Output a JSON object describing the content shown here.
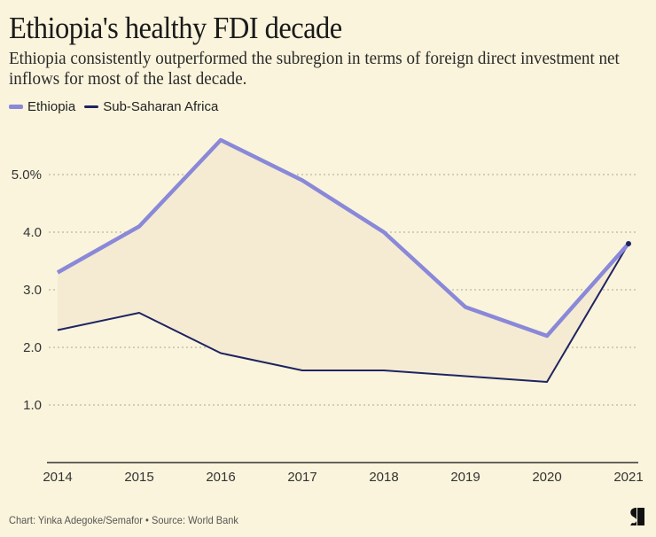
{
  "header": {
    "title": "Ethiopia's healthy FDI decade",
    "subtitle": "Ethiopia consistently outperformed the subregion in terms of foreign direct investment net inflows for most of the last decade."
  },
  "footer": {
    "credit": "Chart: Yinka Adegoke/Semafor • Source: World Bank",
    "logo_icon": "semafor-logo-icon"
  },
  "colors": {
    "background": "#faf4dc",
    "ethiopia": "#8a88d8",
    "ssa": "#1e2461",
    "fill": "#f5ebd3",
    "grid": "#aaa69a",
    "axis": "#333333"
  },
  "chart_data": {
    "type": "line",
    "title": "Ethiopia's healthy FDI decade",
    "subtitle": "Ethiopia consistently outperformed the subregion in terms of foreign direct investment net inflows for most of the last decade.",
    "xlabel": "",
    "ylabel": "",
    "x": [
      "2014",
      "2015",
      "2016",
      "2017",
      "2018",
      "2019",
      "2020",
      "2021"
    ],
    "ylim": [
      0,
      6
    ],
    "yticks": [
      1,
      2,
      3,
      4,
      5
    ],
    "ytick_labels": [
      "1.0",
      "2.0",
      "3.0",
      "4.0",
      "5.0%"
    ],
    "grid": true,
    "legend_position": "top-left",
    "shaded_between_series": true,
    "series": [
      {
        "name": "Ethiopia",
        "values": [
          3.3,
          4.1,
          5.6,
          4.9,
          4.0,
          2.7,
          2.2,
          3.8
        ]
      },
      {
        "name": "Sub-Saharan Africa",
        "values": [
          2.3,
          2.6,
          1.9,
          1.6,
          1.6,
          1.5,
          1.4,
          3.8
        ]
      }
    ]
  }
}
